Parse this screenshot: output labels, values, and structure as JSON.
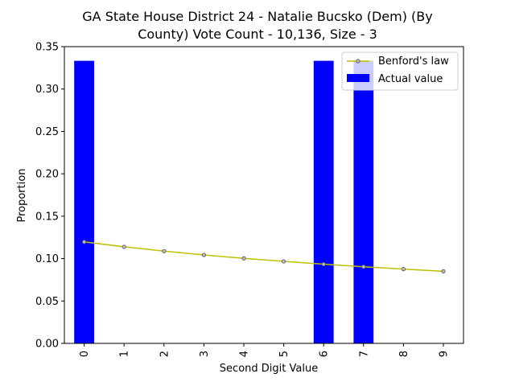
{
  "chart_data": {
    "type": "bar",
    "title_line1": "GA State House District 24 - Natalie Bucsko (Dem) (By",
    "title_line2": "County) Vote Count - 10,136, Size - 3",
    "xlabel": "Second Digit Value",
    "ylabel": "Proportion",
    "categories": [
      "0",
      "1",
      "2",
      "3",
      "4",
      "5",
      "6",
      "7",
      "8",
      "9"
    ],
    "ylim": [
      0,
      0.35
    ],
    "yticks": [
      "0.00",
      "0.05",
      "0.10",
      "0.15",
      "0.20",
      "0.25",
      "0.30",
      "0.35"
    ],
    "series": [
      {
        "name": "Actual value",
        "kind": "bar",
        "color": "#0000ff",
        "values": [
          0.3333,
          0,
          0,
          0,
          0,
          0,
          0.3333,
          0.3333,
          0,
          0
        ]
      },
      {
        "name": "Benford's law",
        "kind": "line",
        "color": "#bfbf00",
        "values": [
          0.1197,
          0.1139,
          0.1088,
          0.1043,
          0.1003,
          0.0967,
          0.0934,
          0.0904,
          0.0876,
          0.085
        ]
      }
    ],
    "legend": {
      "placement": "top-right",
      "entries": [
        "Benford's law",
        "Actual value"
      ]
    },
    "grid": false
  }
}
